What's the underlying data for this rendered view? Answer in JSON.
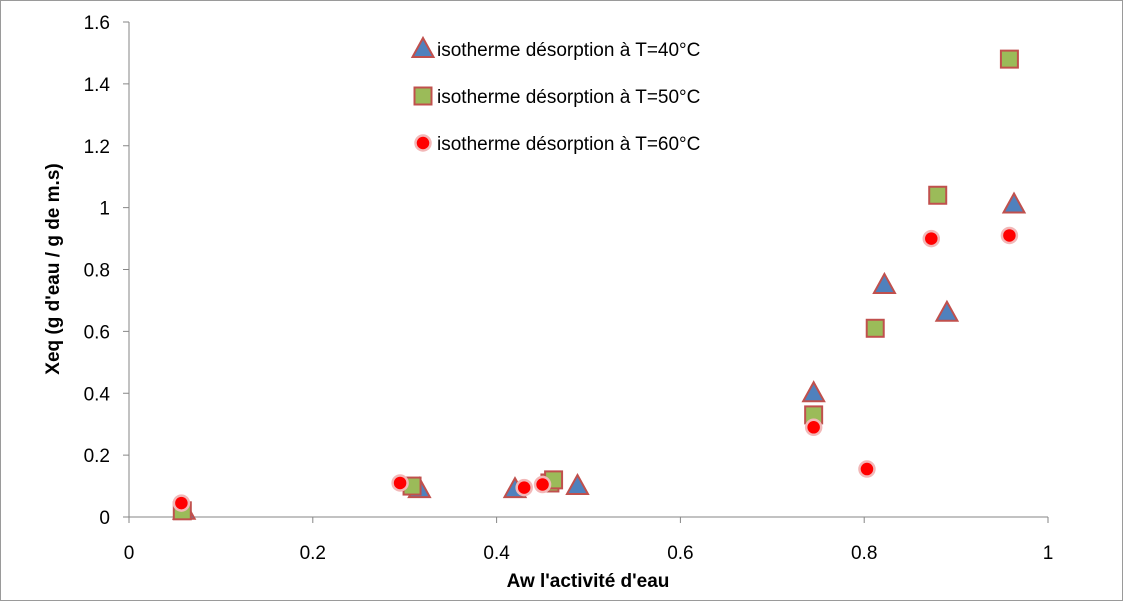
{
  "chart_data": {
    "type": "scatter",
    "title": "",
    "xlabel": "Aw l'activité d'eau",
    "ylabel": "Xeq (g d'eau / g de m.s)",
    "xlim": [
      0,
      1
    ],
    "ylim": [
      0,
      1.6
    ],
    "x_ticks": [
      "0",
      "0.2",
      "0.4",
      "0.6",
      "0.8",
      "1"
    ],
    "y_ticks": [
      "0",
      "0.2",
      "0.4",
      "0.6",
      "0.8",
      "1",
      "1.2",
      "1.4",
      "1.6"
    ],
    "grid": false,
    "legend_position": "top-center",
    "series": [
      {
        "name": "isotherme désorption à T=40°C",
        "marker": "triangle",
        "color": "#4f81bd",
        "edge_color": "#c0504d",
        "x": [
          0.06,
          0.316,
          0.42,
          0.488,
          0.745,
          0.822,
          0.89,
          0.963
        ],
        "y": [
          0.02,
          0.09,
          0.09,
          0.1,
          0.4,
          0.75,
          0.66,
          1.01
        ]
      },
      {
        "name": "isotherme désorption à T=50°C",
        "marker": "square",
        "color": "#9bbb59",
        "edge_color": "#c0504d",
        "x": [
          0.058,
          0.308,
          0.458,
          0.462,
          0.745,
          0.812,
          0.88,
          0.958
        ],
        "y": [
          0.02,
          0.1,
          0.11,
          0.12,
          0.33,
          0.61,
          1.04,
          1.48
        ]
      },
      {
        "name": "isotherme désorption à T=60°C",
        "marker": "circle",
        "color": "#ff0000",
        "edge_color": "#f2b8b8",
        "x": [
          0.057,
          0.295,
          0.43,
          0.45,
          0.745,
          0.803,
          0.873,
          0.958
        ],
        "y": [
          0.045,
          0.11,
          0.095,
          0.105,
          0.29,
          0.155,
          0.9,
          0.91
        ]
      }
    ]
  }
}
